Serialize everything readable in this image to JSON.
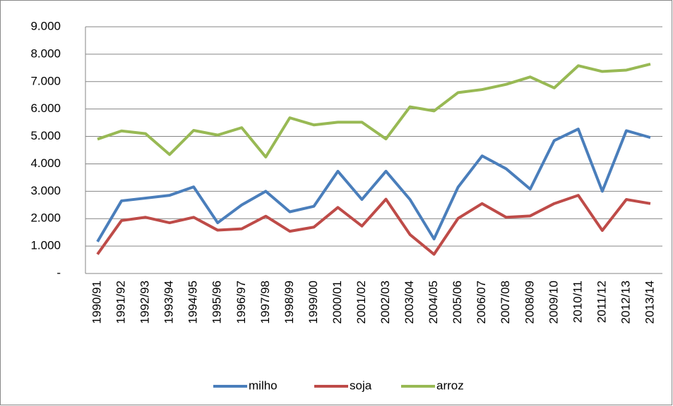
{
  "chart_data": {
    "type": "line",
    "categories": [
      "1990/91",
      "1991/92",
      "1992/93",
      "1993/94",
      "1994/95",
      "1995/96",
      "1996/97",
      "1997/98",
      "1998/99",
      "1999/00",
      "2000/01",
      "2001/02",
      "2002/03",
      "2003/04",
      "2004/05",
      "2005/06",
      "2006/07",
      "2007/08",
      "2008/09",
      "2009/10",
      "2010/11",
      "2011/12",
      "2012/13",
      "2013/14"
    ],
    "series": [
      {
        "name": "milho",
        "color": "#4a7ebb",
        "values": [
          1160,
          2650,
          2750,
          2850,
          3160,
          1850,
          2500,
          3000,
          2250,
          2450,
          3730,
          2700,
          3730,
          2700,
          1260,
          3150,
          4290,
          3820,
          3080,
          4850,
          5270,
          3000,
          5210,
          4960
        ]
      },
      {
        "name": "soja",
        "color": "#be4b48",
        "values": [
          700,
          1930,
          2050,
          1850,
          2050,
          1580,
          1630,
          2090,
          1540,
          1690,
          2410,
          1730,
          2710,
          1420,
          700,
          2010,
          2550,
          2050,
          2100,
          2550,
          2850,
          1570,
          2700,
          2550
        ]
      },
      {
        "name": "arroz",
        "color": "#98b954",
        "values": [
          4900,
          5200,
          5100,
          4340,
          5220,
          5050,
          5320,
          4250,
          5680,
          5420,
          5520,
          5520,
          4910,
          6080,
          5930,
          6600,
          6710,
          6900,
          7170,
          6770,
          7580,
          7370,
          7420,
          7640
        ]
      }
    ],
    "ylim": [
      0,
      9000
    ],
    "yticks": [
      {
        "value": 0,
        "label": "-"
      },
      {
        "value": 1000,
        "label": "1.000"
      },
      {
        "value": 2000,
        "label": "2.000"
      },
      {
        "value": 3000,
        "label": "3.000"
      },
      {
        "value": 4000,
        "label": "4.000"
      },
      {
        "value": 5000,
        "label": "5.000"
      },
      {
        "value": 6000,
        "label": "6.000"
      },
      {
        "value": 7000,
        "label": "7.000"
      },
      {
        "value": 8000,
        "label": "8.000"
      },
      {
        "value": 9000,
        "label": "9.000"
      }
    ],
    "grid": true,
    "legend": "bottom"
  }
}
